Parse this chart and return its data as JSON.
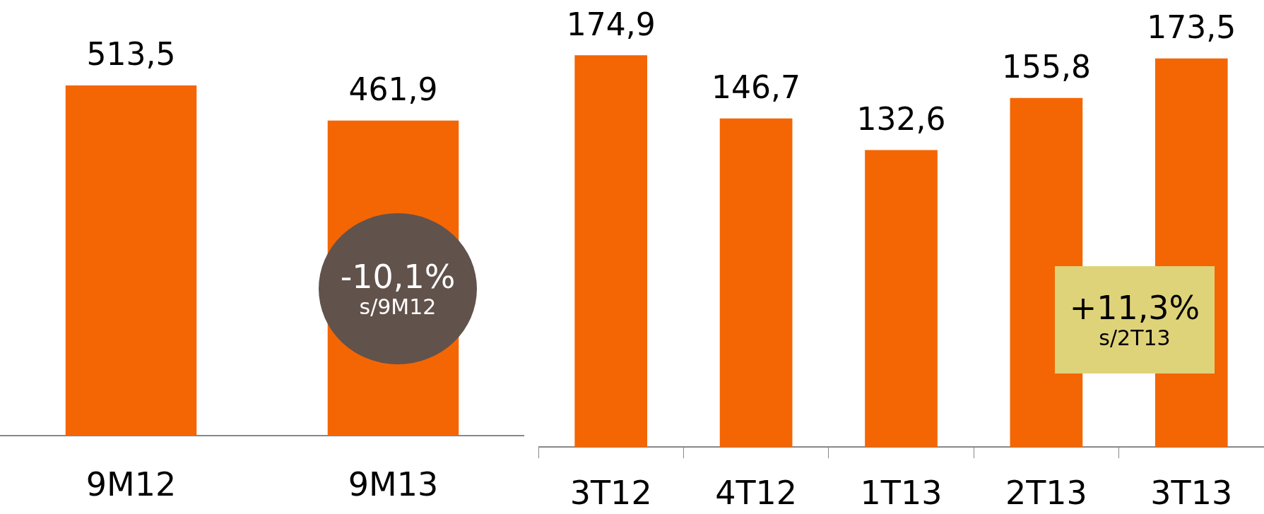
{
  "chart_data": [
    {
      "type": "bar",
      "categories": [
        "9M12",
        "9M13"
      ],
      "values": [
        513.5,
        461.9
      ],
      "color": "#f46604",
      "data_labels": true,
      "value_labels": [
        "513,5",
        "461,9"
      ],
      "grid": false,
      "legend": false,
      "annotations": [
        "-10,1%",
        "s/9M12"
      ]
    },
    {
      "type": "bar",
      "categories": [
        "3T12",
        "4T12",
        "1T13",
        "2T13",
        "3T13"
      ],
      "values": [
        174.9,
        146.7,
        132.6,
        155.8,
        173.5
      ],
      "color": "#f46604",
      "data_labels": true,
      "value_labels": [
        "174,9",
        "146,7",
        "132,6",
        "155,8",
        "173,5"
      ],
      "grid": false,
      "legend": false,
      "annotations": [
        "+11,3%",
        "s/2T13"
      ]
    }
  ]
}
